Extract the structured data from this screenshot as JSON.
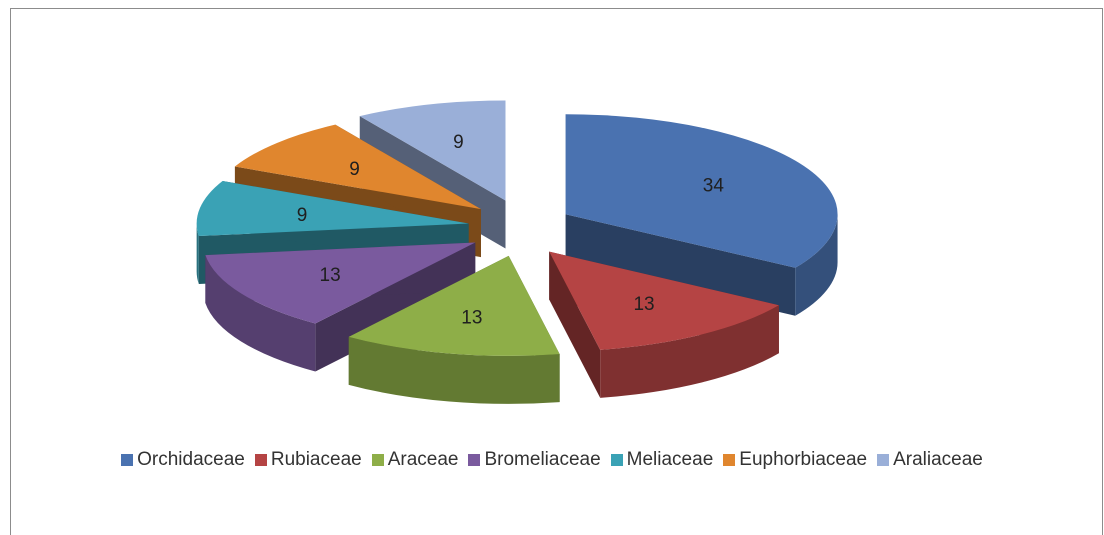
{
  "chart_data": {
    "type": "pie",
    "title": "",
    "categories": [
      "Orchidaceae",
      "Rubiaceae",
      "Araceae",
      "Bromeliaceae",
      "Meliaceae",
      "Euphorbiaceae",
      "Araliaceae"
    ],
    "values": [
      34,
      13,
      13,
      13,
      9,
      9,
      9
    ],
    "data_labels": [
      "34",
      "13",
      "13",
      "13",
      "9",
      "9",
      "9"
    ],
    "colors": [
      "#4a72b0",
      "#b54444",
      "#8eae48",
      "#7a5a9e",
      "#3aa2b5",
      "#e0862e",
      "#9aafd8"
    ],
    "exploded": true,
    "style": "3d",
    "legend_position": "bottom"
  }
}
